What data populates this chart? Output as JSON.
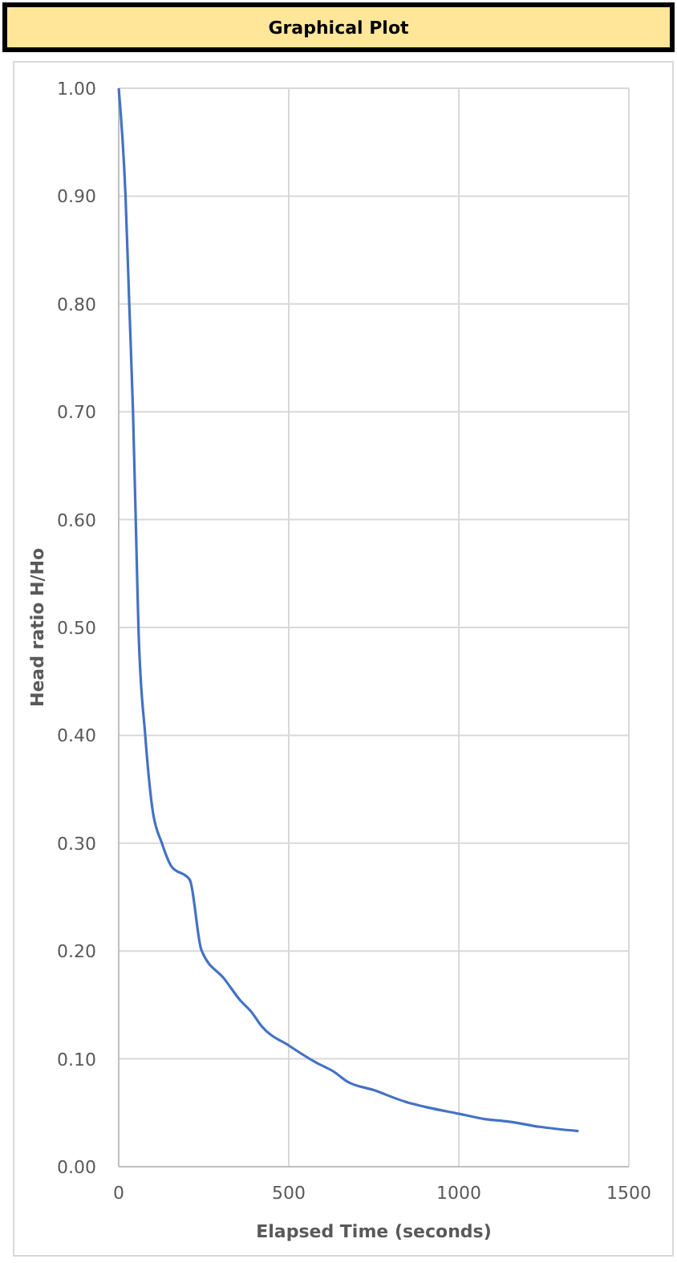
{
  "chart_data": {
    "type": "line",
    "title": "Graphical Plot",
    "xlabel": "Elapsed Time (seconds)",
    "ylabel": "Head ratio H/Ho",
    "xlim": [
      0,
      1500
    ],
    "xticks": [
      0,
      500,
      1000,
      1500
    ],
    "ylim": [
      0,
      1
    ],
    "yticks": [
      {
        "value": 0,
        "label": "0.00"
      },
      {
        "value": 0.1,
        "label": "0.10"
      },
      {
        "value": 0.2,
        "label": "0.20"
      },
      {
        "value": 0.3,
        "label": "0.30"
      },
      {
        "value": 0.4,
        "label": "0.40"
      },
      {
        "value": 0.5,
        "label": "0.50"
      },
      {
        "value": 0.6,
        "label": "0.60"
      },
      {
        "value": 0.7,
        "label": "0.70"
      },
      {
        "value": 0.8,
        "label": "0.80"
      },
      {
        "value": 0.9,
        "label": "0.90"
      },
      {
        "value": 1,
        "label": "1.00"
      }
    ],
    "grid": true,
    "marker": "none",
    "line_style": "solid",
    "series": [
      {
        "color": "#4472c4",
        "x": [
          0,
          20,
          31,
          42,
          52,
          58,
          78,
          99,
          127,
          154,
          209,
          243,
          311,
          358,
          389,
          421,
          502,
          578,
          633,
          672,
          750,
          845,
          908,
          1002,
          1080,
          1143,
          1237,
          1352
        ],
        "values": [
          1.0,
          0.9,
          0.8,
          0.7,
          0.575,
          0.5,
          0.4,
          0.332,
          0.3,
          0.279,
          0.266,
          0.201,
          0.174,
          0.154,
          0.144,
          0.13,
          0.112,
          0.097,
          0.088,
          0.079,
          0.071,
          0.06,
          0.055,
          0.049,
          0.044,
          0.042,
          0.037,
          0.033
        ]
      }
    ]
  }
}
